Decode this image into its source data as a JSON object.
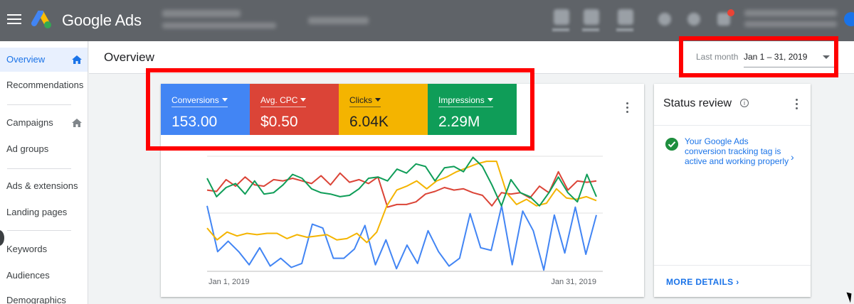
{
  "header": {
    "brand": "Google Ads"
  },
  "sidebar": {
    "items": [
      {
        "label": "Overview"
      },
      {
        "label": "Recommendations"
      },
      {
        "label": "Campaigns"
      },
      {
        "label": "Ad groups"
      },
      {
        "label": "Ads & extensions"
      },
      {
        "label": "Landing pages"
      },
      {
        "label": "Keywords"
      },
      {
        "label": "Audiences"
      },
      {
        "label": "Demographics"
      }
    ]
  },
  "page": {
    "title": "Overview",
    "date_range_label": "Last month",
    "date_range_value": "Jan 1 – 31, 2019"
  },
  "metrics": [
    {
      "label": "Conversions",
      "value": "153.00",
      "color": "#4285f4"
    },
    {
      "label": "Avg. CPC",
      "value": "$0.50",
      "color": "#db4437"
    },
    {
      "label": "Clicks",
      "value": "6.04K",
      "color": "#f4b400"
    },
    {
      "label": "Impressions",
      "value": "2.29M",
      "color": "#0f9d58"
    }
  ],
  "chart_data": {
    "type": "line",
    "x_tick_labels": [
      "Jan 1, 2019",
      "Jan 31, 2019"
    ],
    "series": [
      {
        "name": "Conversions",
        "color": "#4285f4",
        "values": [
          5.0,
          1.5,
          2.3,
          1.5,
          0.5,
          1.8,
          0.4,
          1.0,
          0.3,
          0.6,
          3.6,
          3.3,
          1.0,
          1.0,
          1.7,
          3.5,
          0.5,
          2.4,
          0.2,
          2.0,
          0.6,
          3.1,
          1.5,
          0.4,
          1.0,
          4.4,
          1.8,
          1.6,
          5.0,
          0.5,
          4.6,
          3.1,
          0.1,
          4.3,
          1.4,
          4.9,
          1.3,
          4.3
        ]
      },
      {
        "name": "Avg. CPC",
        "color": "#db4437",
        "values": [
          6.2,
          6.1,
          7.0,
          6.5,
          7.2,
          6.6,
          6.5,
          7.0,
          6.9,
          7.1,
          6.9,
          6.7,
          7.3,
          6.6,
          7.5,
          6.8,
          7.0,
          6.7,
          7.2,
          4.9,
          5.1,
          5.1,
          5.3,
          5.9,
          6.1,
          6.4,
          6.2,
          6.3,
          6.0,
          5.8,
          5.0,
          6.0,
          5.9,
          6.0,
          5.6,
          6.5,
          6.0,
          7.6,
          6.2,
          6.9,
          6.8,
          6.9
        ]
      },
      {
        "name": "Clicks",
        "color": "#f4b400",
        "values": [
          3.3,
          2.4,
          3.0,
          2.7,
          2.9,
          2.8,
          2.9,
          2.9,
          2.5,
          2.8,
          2.6,
          2.7,
          2.8,
          2.4,
          2.5,
          2.9,
          2.2,
          3.0,
          5.0,
          6.2,
          6.5,
          6.9,
          6.3,
          6.9,
          7.2,
          7.6,
          7.9,
          8.2,
          8.4,
          8.4,
          6.0,
          5.1,
          5.5,
          5.0,
          5.2,
          6.3,
          5.6,
          5.5,
          5.7,
          5.4
        ]
      },
      {
        "name": "Impressions",
        "color": "#0f9d58",
        "values": [
          7.1,
          5.7,
          6.4,
          6.7,
          5.9,
          6.9,
          5.9,
          6.0,
          6.6,
          7.4,
          7.1,
          6.3,
          6.0,
          5.9,
          5.7,
          5.8,
          6.3,
          7.1,
          7.2,
          6.9,
          7.8,
          7.5,
          8.2,
          8.0,
          6.9,
          7.9,
          8.0,
          7.6,
          8.7,
          8.0,
          6.6,
          5.0,
          7.0,
          6.0,
          5.7,
          5.0,
          6.0,
          7.2,
          6.0,
          5.3,
          7.4,
          5.7
        ]
      }
    ]
  },
  "status": {
    "title": "Status review",
    "message": "Your Google Ads conversion tracking tag is active and working properly",
    "more": "MORE DETAILS"
  }
}
